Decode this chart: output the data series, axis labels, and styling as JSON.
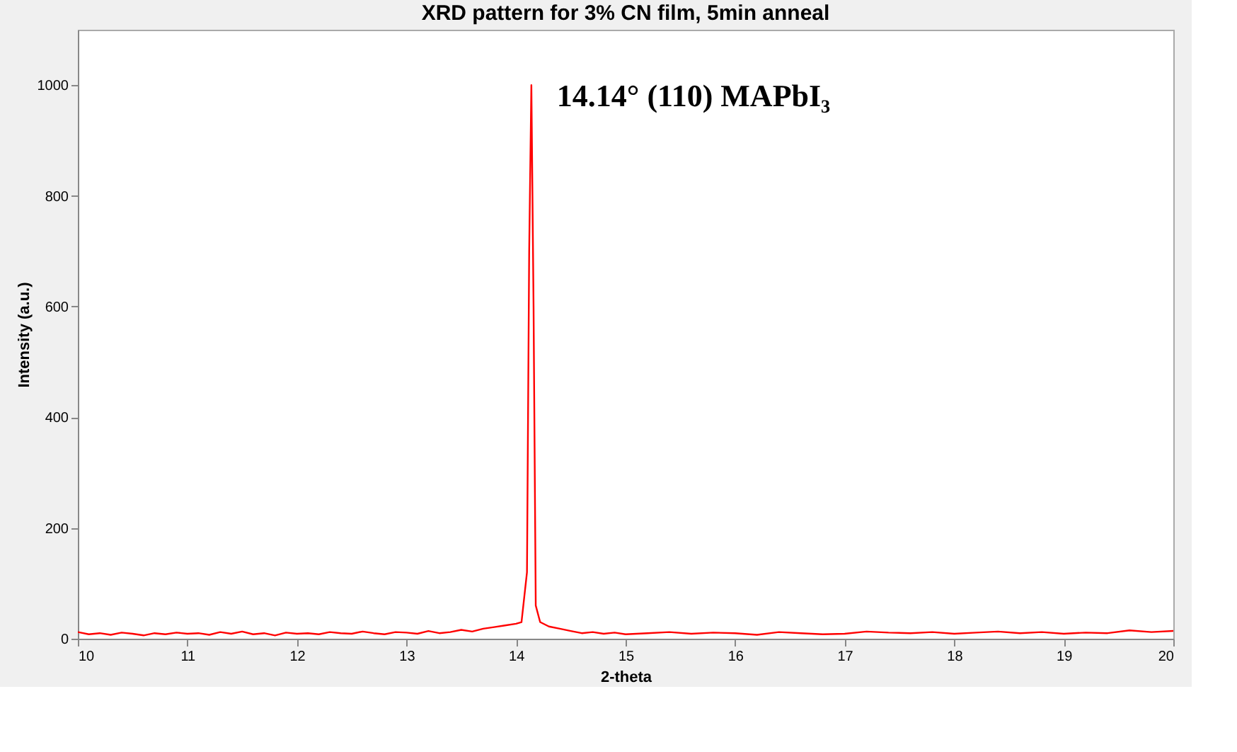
{
  "chart_data": {
    "type": "line",
    "title": "XRD pattern for 3% CN film, 5min anneal",
    "xlabel": "2-theta",
    "ylabel": "Intensity (a.u.)",
    "x": [
      10,
      10.1,
      10.2,
      10.3,
      10.4,
      10.5,
      10.6,
      10.7,
      10.8,
      10.9,
      11,
      11.1,
      11.2,
      11.3,
      11.4,
      11.5,
      11.6,
      11.7,
      11.8,
      11.9,
      12,
      12.1,
      12.2,
      12.3,
      12.4,
      12.5,
      12.6,
      12.7,
      12.8,
      12.9,
      13,
      13.1,
      13.2,
      13.3,
      13.4,
      13.5,
      13.6,
      13.7,
      13.8,
      13.9,
      14,
      14.05,
      14.1,
      14.12,
      14.14,
      14.16,
      14.18,
      14.22,
      14.3,
      14.4,
      14.5,
      14.6,
      14.7,
      14.8,
      14.9,
      15,
      15.2,
      15.4,
      15.6,
      15.8,
      16,
      16.2,
      16.4,
      16.6,
      16.8,
      17,
      17.2,
      17.4,
      17.6,
      17.8,
      18,
      18.2,
      18.4,
      18.6,
      18.8,
      19,
      19.2,
      19.4,
      19.6,
      19.8,
      20
    ],
    "series": [
      {
        "color": "#ff0000",
        "values": [
          12,
          8,
          10,
          7,
          11,
          9,
          6,
          10,
          8,
          11,
          9,
          10,
          7,
          12,
          9,
          13,
          8,
          10,
          6,
          11,
          9,
          10,
          8,
          12,
          10,
          9,
          13,
          10,
          8,
          12,
          11,
          9,
          14,
          10,
          12,
          16,
          13,
          18,
          21,
          24,
          27,
          30,
          120,
          700,
          1000,
          600,
          60,
          30,
          22,
          18,
          14,
          10,
          12,
          9,
          11,
          8,
          10,
          12,
          9,
          11,
          10,
          7,
          12,
          10,
          8,
          9,
          13,
          11,
          10,
          12,
          9,
          11,
          13,
          10,
          12,
          9,
          11,
          10,
          15,
          12,
          14
        ]
      }
    ],
    "xlim": [
      10,
      20
    ],
    "ylim": [
      0,
      1100
    ],
    "xticks": [
      10,
      11,
      12,
      13,
      14,
      15,
      16,
      17,
      18,
      19,
      20
    ],
    "yticks": [
      0,
      200,
      400,
      600,
      800,
      1000
    ],
    "grid": false,
    "annotations": [
      {
        "text": "14.14° (110) MAPbI₃",
        "x": 14.14,
        "y": 1000
      }
    ]
  }
}
